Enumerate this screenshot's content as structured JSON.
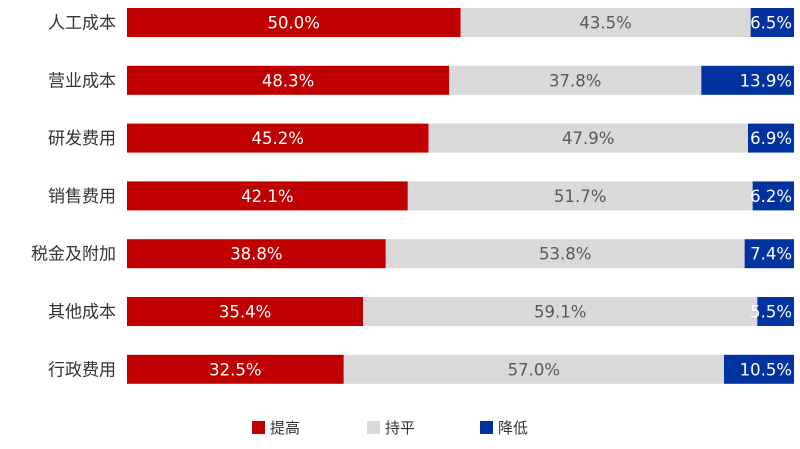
{
  "chart_data": {
    "type": "bar",
    "orientation": "horizontal",
    "stacked": true,
    "percent_stacked": true,
    "categories": [
      "人工成本",
      "营业成本",
      "研发费用",
      "销售费用",
      "税金及附加",
      "其他成本",
      "行政费用"
    ],
    "series": [
      {
        "name": "提高",
        "color": "#C00000",
        "label_color": "#ffffff",
        "values": [
          50.0,
          48.3,
          45.2,
          42.1,
          38.8,
          35.4,
          32.5
        ],
        "labels": [
          "50.0%",
          "48.3%",
          "45.2%",
          "42.1%",
          "38.8%",
          "35.4%",
          "32.5%"
        ]
      },
      {
        "name": "持平",
        "color": "#D9D9D9",
        "label_color": "#595959",
        "values": [
          43.5,
          37.8,
          47.9,
          51.7,
          53.8,
          59.1,
          57.0
        ],
        "labels": [
          "43.5%",
          "37.8%",
          "47.9%",
          "51.7%",
          "53.8%",
          "59.1%",
          "57.0%"
        ]
      },
      {
        "name": "降低",
        "color": "#0033A0",
        "label_color": "#ffffff",
        "values": [
          6.5,
          13.9,
          6.9,
          6.2,
          7.4,
          5.5,
          10.5
        ],
        "labels": [
          "6.5%",
          "13.9%",
          "6.9%",
          "6.2%",
          "7.4%",
          "5.5%",
          "10.5%"
        ]
      }
    ],
    "xlim": [
      0,
      100
    ],
    "grid": false,
    "legend_position": "bottom-center"
  }
}
